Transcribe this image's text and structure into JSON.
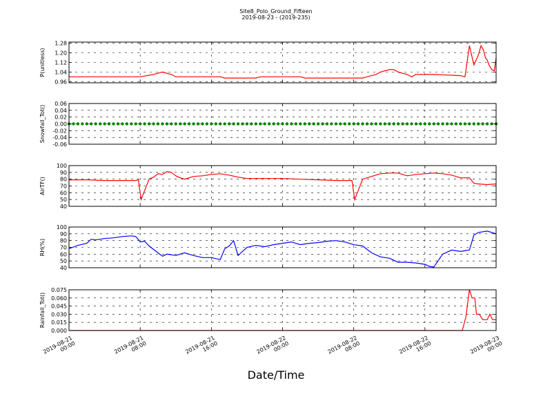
{
  "figure": {
    "title_line1": "Site8_Polo_Ground_Fifteen",
    "title_line2": "2019-08-23 - (2019-235)",
    "xlabel": "Date/Time",
    "x_ticks": [
      {
        "line1": "2019-08-21",
        "line2": "00:00"
      },
      {
        "line1": "2019-08-21",
        "line2": "08:00"
      },
      {
        "line1": "2019-08-21",
        "line2": "16:00"
      },
      {
        "line1": "2019-08-22",
        "line2": "00:00"
      },
      {
        "line1": "2019-08-22",
        "line2": "08:00"
      },
      {
        "line1": "2019-08-22",
        "line2": "16:00"
      },
      {
        "line1": "2019-08-23",
        "line2": "00:00"
      }
    ],
    "x_hours": [
      0,
      8,
      16,
      24,
      32,
      40,
      48
    ]
  },
  "chart_data": [
    {
      "type": "line",
      "ylabel": "P(unitless)",
      "ylim": [
        0.95,
        1.29
      ],
      "yticks": [
        "0.96",
        "1.04",
        "1.12",
        "1.20",
        "1.28"
      ],
      "ytick_values": [
        0.96,
        1.04,
        1.12,
        1.2,
        1.28
      ],
      "xlim_hours": [
        0,
        48
      ],
      "grid": true,
      "color": "#ff0000",
      "series": [
        {
          "x": [
            0,
            2,
            4,
            6,
            7.5,
            8,
            9.5,
            10.5,
            11.5,
            12,
            14,
            16,
            17,
            17.5,
            19,
            21,
            21.5,
            23,
            25,
            26,
            26.5,
            29,
            31,
            33,
            33.5,
            34.5,
            35,
            36,
            36.5,
            37,
            38,
            38.5,
            39,
            40,
            40.5,
            41,
            44,
            44.5,
            45,
            45.5,
            46,
            46.3,
            46.6,
            46.8,
            47,
            47.2,
            47.5,
            47.8,
            48
          ],
          "y": [
            1.0,
            1.0,
            1.0,
            1.0,
            1.0,
            1.0,
            1.02,
            1.04,
            1.02,
            1.0,
            1.0,
            1.0,
            1.0,
            0.99,
            0.99,
            0.99,
            1.0,
            1.0,
            1.0,
            1.0,
            0.99,
            0.99,
            0.99,
            0.99,
            1.0,
            1.02,
            1.04,
            1.06,
            1.06,
            1.04,
            1.02,
            1.0,
            1.02,
            1.02,
            1.02,
            1.02,
            1.01,
            1.0,
            1.26,
            1.1,
            1.18,
            1.26,
            1.22,
            1.16,
            1.14,
            1.1,
            1.06,
            1.05,
            1.16
          ]
        }
      ]
    },
    {
      "type": "scatter",
      "ylabel": "Snowfall_Tot()",
      "ylim": [
        -0.06,
        0.06
      ],
      "yticks": [
        "-0.06",
        "-0.04",
        "-0.02",
        "0.00",
        "0.02",
        "0.04",
        "0.06"
      ],
      "ytick_values": [
        -0.06,
        -0.04,
        -0.02,
        0.0,
        0.02,
        0.04,
        0.06
      ],
      "xlim_hours": [
        0,
        48
      ],
      "grid": true,
      "color": "#008000",
      "series": [
        {
          "constant": 0.0,
          "x_range": [
            0,
            48
          ]
        }
      ]
    },
    {
      "type": "line",
      "ylabel": "AirTF()",
      "ylim": [
        40,
        100
      ],
      "yticks": [
        "40",
        "50",
        "60",
        "70",
        "80",
        "90",
        "100"
      ],
      "ytick_values": [
        40,
        50,
        60,
        70,
        80,
        90,
        100
      ],
      "xlim_hours": [
        0,
        48
      ],
      "grid": true,
      "color": "#ff0000",
      "series": [
        {
          "x": [
            0,
            2,
            4,
            6,
            7.5,
            7.8,
            8.1,
            9,
            9.5,
            10,
            10.5,
            11,
            11.5,
            12,
            12.5,
            13,
            14,
            15,
            16,
            17,
            18,
            19,
            20,
            22,
            24,
            26,
            28,
            30,
            31.5,
            31.8,
            32.1,
            33,
            34,
            35,
            36,
            37,
            38,
            39,
            40,
            41,
            42,
            43,
            44,
            45,
            45.5,
            46,
            47,
            48
          ],
          "y": [
            79,
            79,
            78,
            78,
            78,
            79,
            50,
            80,
            83,
            88,
            87,
            91,
            90,
            85,
            82,
            80,
            84,
            85,
            87,
            88,
            86,
            83,
            81,
            81,
            81,
            80,
            79,
            78,
            78,
            78,
            50,
            80,
            84,
            88,
            89,
            89,
            85,
            87,
            88,
            89,
            88,
            86,
            82,
            82,
            74,
            73,
            72,
            73
          ]
        }
      ]
    },
    {
      "type": "line",
      "ylabel": "RH(%)",
      "ylim": [
        40,
        100
      ],
      "yticks": [
        "40",
        "50",
        "60",
        "70",
        "80",
        "90",
        "100"
      ],
      "ytick_values": [
        40,
        50,
        60,
        70,
        80,
        90,
        100
      ],
      "xlim_hours": [
        0,
        48
      ],
      "grid": true,
      "color": "#0000ff",
      "series": [
        {
          "x": [
            0,
            1,
            2,
            2.5,
            3,
            4,
            5,
            6,
            7,
            7.5,
            8,
            8.5,
            9,
            10,
            10.5,
            11,
            12,
            13,
            14,
            15,
            16,
            17,
            17.5,
            18,
            18.5,
            19,
            20,
            21,
            22,
            23,
            24,
            25,
            26,
            27,
            28,
            29,
            30,
            31,
            32,
            33,
            34,
            35,
            36,
            37,
            38,
            39,
            40,
            40.5,
            41,
            42,
            43,
            44,
            45,
            45.5,
            46,
            47,
            48
          ],
          "y": [
            68,
            73,
            76,
            82,
            81,
            83,
            84,
            86,
            87,
            86,
            78,
            79,
            72,
            62,
            57,
            60,
            58,
            62,
            58,
            55,
            55,
            52,
            68,
            72,
            80,
            58,
            70,
            73,
            71,
            74,
            76,
            78,
            74,
            76,
            77,
            79,
            80,
            78,
            74,
            72,
            62,
            56,
            54,
            48,
            48,
            47,
            45,
            42,
            41,
            60,
            66,
            64,
            66,
            88,
            92,
            94,
            90
          ]
        }
      ]
    },
    {
      "type": "line",
      "ylabel": "Rainfall_Tot()",
      "ylim": [
        0,
        0.075
      ],
      "yticks": [
        "0.000",
        "0.015",
        "0.030",
        "0.045",
        "0.060",
        "0.075"
      ],
      "ytick_values": [
        0,
        0.015,
        0.03,
        0.045,
        0.06,
        0.075
      ],
      "xlim_hours": [
        0,
        48
      ],
      "grid": true,
      "color": "#ff0000",
      "series": [
        {
          "x": [
            0,
            44.2,
            44.6,
            45,
            45.3,
            45.6,
            45.8,
            46.1,
            46.5,
            47,
            47.3,
            47.6,
            48
          ],
          "y": [
            0,
            0,
            0.025,
            0.075,
            0.06,
            0.06,
            0.03,
            0.03,
            0.02,
            0.02,
            0.03,
            0.02,
            0.02
          ]
        }
      ]
    }
  ]
}
